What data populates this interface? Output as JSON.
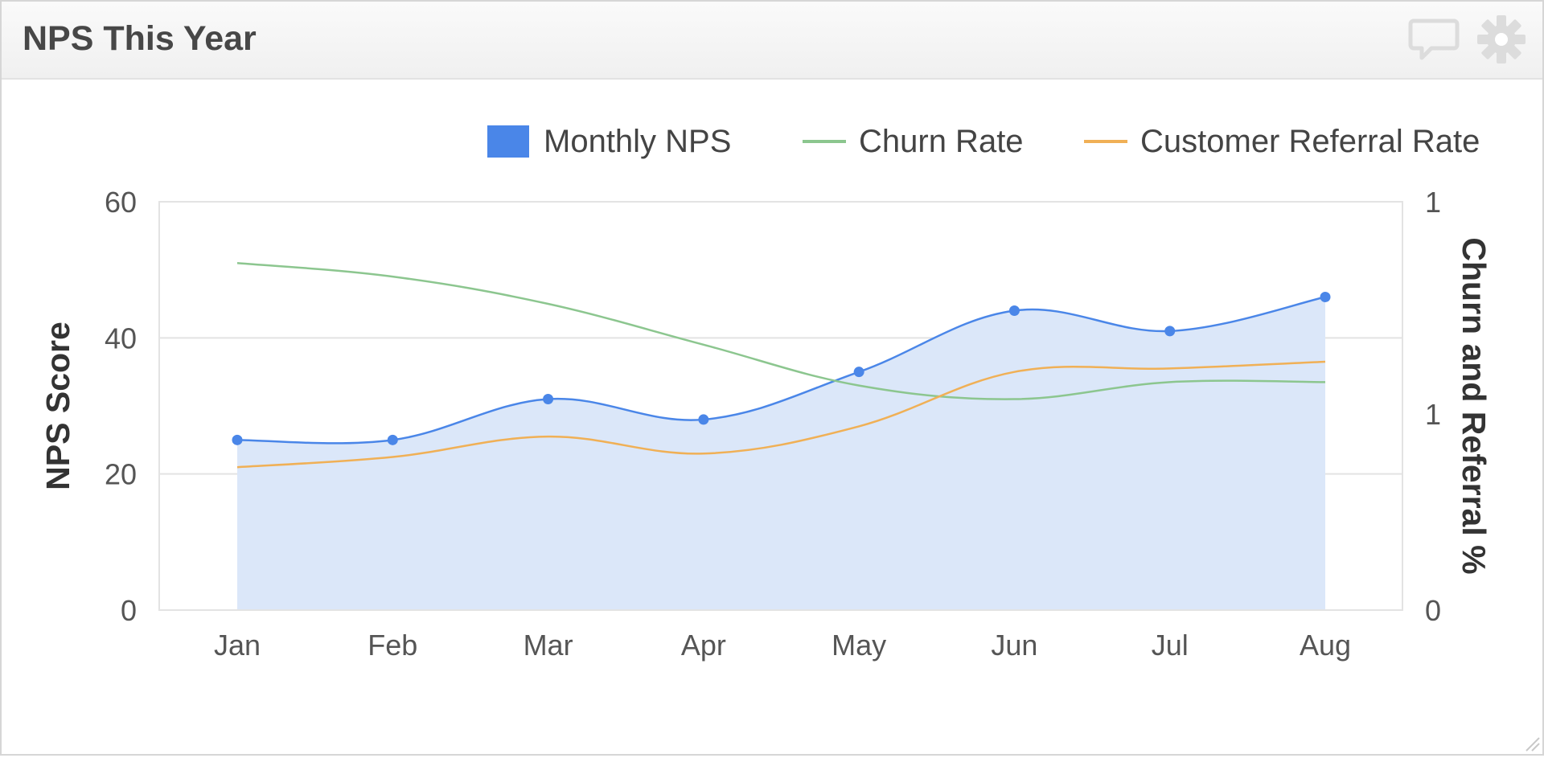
{
  "widget": {
    "title": "NPS This Year",
    "icons": {
      "comment": "comment-icon",
      "settings": "gear-icon"
    }
  },
  "chart_data": {
    "type": "line",
    "categories": [
      "Jan",
      "Feb",
      "Mar",
      "Apr",
      "May",
      "Jun",
      "Jul",
      "Aug"
    ],
    "series": [
      {
        "name": "Monthly NPS",
        "style": "area",
        "axis": "left",
        "color": "#4a86e8",
        "fill": "#dbe7f9",
        "values": [
          25,
          25,
          31,
          28,
          35,
          44,
          41,
          46
        ]
      },
      {
        "name": "Churn Rate",
        "style": "line",
        "axis": "left",
        "color": "#8cc68f",
        "values": [
          51,
          49,
          45,
          39,
          33,
          31,
          33.5,
          33.5
        ]
      },
      {
        "name": "Customer Referral Rate",
        "style": "line",
        "axis": "left",
        "color": "#f0b056",
        "values": [
          21,
          22.5,
          25.5,
          23,
          27,
          35,
          35.5,
          36.5
        ]
      }
    ],
    "ylabel": "NPS Score",
    "y2label": "Churn and Referral %",
    "ylim": [
      0,
      60
    ],
    "yticks": [
      "0",
      "20",
      "40",
      "60"
    ],
    "y2ticks": [
      "0",
      "1",
      "1"
    ],
    "legend_position": "top-right",
    "grid": true
  }
}
